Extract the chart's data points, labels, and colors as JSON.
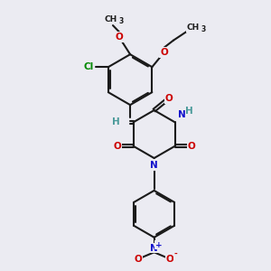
{
  "bg_color": "#ebebf2",
  "bond_color": "#1a1a1a",
  "bond_width": 1.5,
  "dbo": 0.055,
  "atom_colors": {
    "C": "#1a1a1a",
    "O": "#cc0000",
    "N": "#1010cc",
    "Cl": "#008800",
    "H": "#4a9a9a"
  },
  "fs_main": 7.5,
  "fs_sub": 5.5,
  "fs_small": 6.5
}
